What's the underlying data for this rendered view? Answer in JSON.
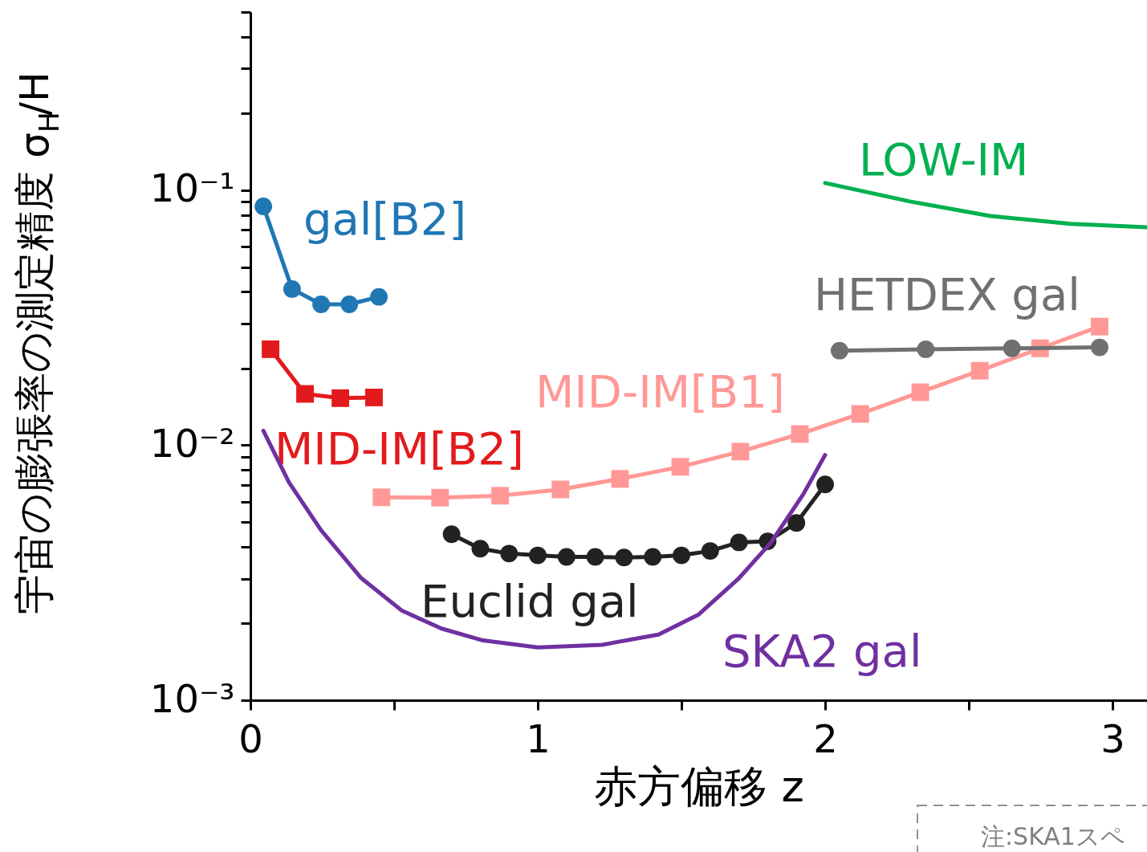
{
  "chart_data": {
    "type": "line",
    "xlabel": "赤方偏移 z",
    "ylabel": "宇宙の膨張率の測定精度 σ$_{H}$/H",
    "log": "y",
    "xlim": [
      0,
      3.12
    ],
    "xticks": [
      0,
      {
        "value": 0.5,
        "label": null
      },
      1,
      {
        "value": 1.5,
        "label": null
      },
      2,
      {
        "value": 2.5,
        "label": null
      },
      3
    ],
    "ylim": [
      0.001,
      0.5
    ],
    "yticks": [
      {
        "value": 0.001,
        "label": "10⁻³"
      },
      {
        "value": 0.002,
        "label": null
      },
      {
        "value": 0.003,
        "label": null
      },
      {
        "value": 0.004,
        "label": null
      },
      {
        "value": 0.005,
        "label": null
      },
      {
        "value": 0.006,
        "label": null
      },
      {
        "value": 0.007,
        "label": null
      },
      {
        "value": 0.008,
        "label": null
      },
      {
        "value": 0.009,
        "label": null
      },
      {
        "value": 0.01,
        "label": "10⁻²"
      },
      {
        "value": 0.02,
        "label": null
      },
      {
        "value": 0.03,
        "label": null
      },
      {
        "value": 0.04,
        "label": null
      },
      {
        "value": 0.05,
        "label": null
      },
      {
        "value": 0.06,
        "label": null
      },
      {
        "value": 0.07,
        "label": null
      },
      {
        "value": 0.08,
        "label": null
      },
      {
        "value": 0.09,
        "label": null
      },
      {
        "value": 0.1,
        "label": "10⁻¹"
      },
      {
        "value": 0.2,
        "label": null
      },
      {
        "value": 0.3,
        "label": null
      },
      {
        "value": 0.4,
        "label": null
      },
      {
        "value": 0.5,
        "label": null
      }
    ],
    "grid": false,
    "legend": false,
    "line_style": "solid",
    "series": [
      {
        "name": "gal[B2]",
        "color": "#1f77b4",
        "marker": "circle",
        "x": [
          0.045,
          0.145,
          0.246,
          0.344,
          0.447
        ],
        "values": [
          0.0865,
          0.041,
          0.0357,
          0.0357,
          0.0382
        ]
      },
      {
        "name": "MID-IM[B2]",
        "color": "#e31a1c",
        "marker": "square",
        "x": [
          0.07,
          0.19,
          0.313,
          0.43
        ],
        "values": [
          0.0238,
          0.0159,
          0.0153,
          0.0154
        ]
      },
      {
        "name": "MID-IM[B1]",
        "color": "#ff9896",
        "marker": "square",
        "x": [
          0.456,
          0.66,
          0.869,
          1.079,
          1.286,
          1.496,
          1.705,
          1.912,
          2.122,
          2.331,
          2.538,
          2.748,
          2.955
        ],
        "values": [
          0.00625,
          0.00623,
          0.00634,
          0.00671,
          0.00738,
          0.00823,
          0.00944,
          0.01107,
          0.01327,
          0.01614,
          0.0196,
          0.024,
          0.0292
        ]
      },
      {
        "name": "Euclid gal",
        "color": "#222222",
        "marker": "circle",
        "x": [
          0.7,
          0.8,
          0.9,
          1.0,
          1.1,
          1.2,
          1.3,
          1.4,
          1.5,
          1.6,
          1.7,
          1.8,
          1.9,
          2.0
        ],
        "values": [
          0.00448,
          0.00393,
          0.00376,
          0.0037,
          0.00365,
          0.00365,
          0.00363,
          0.00365,
          0.0037,
          0.00385,
          0.00416,
          0.0042,
          0.00496,
          0.00702
        ]
      },
      {
        "name": "HETDEX gal",
        "color": "#707070",
        "marker": "circle",
        "x": [
          2.05,
          2.35,
          2.65,
          2.955
        ],
        "values": [
          0.0235,
          0.0238,
          0.024,
          0.0242
        ]
      },
      {
        "name": "LOW-IM",
        "color": "#00b050",
        "marker": "none",
        "x": [
          2.0,
          2.295,
          2.575,
          2.854,
          3.12
        ],
        "values": [
          0.1068,
          0.0904,
          0.0793,
          0.0738,
          0.0716
        ]
      },
      {
        "name": "SKA2 gal",
        "color": "#7030a0",
        "marker": "none",
        "x": [
          0.045,
          0.134,
          0.246,
          0.386,
          0.526,
          0.665,
          0.805,
          1.0,
          1.224,
          1.42,
          1.56,
          1.7,
          1.812,
          1.924,
          2.0
        ],
        "values": [
          0.0114,
          0.00716,
          0.00464,
          0.00301,
          0.00225,
          0.00191,
          0.00172,
          0.00161,
          0.00165,
          0.00181,
          0.00217,
          0.00301,
          0.00416,
          0.00643,
          0.00916
        ]
      }
    ],
    "annotations": [
      "注:SKA1スペ"
    ]
  }
}
